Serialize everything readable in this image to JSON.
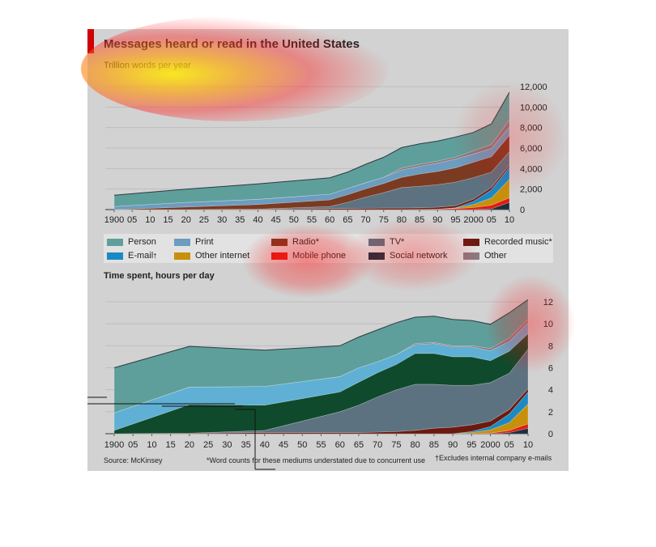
{
  "title": "Messages heard or read in the United States",
  "subtitle_top": "Trillion words per year",
  "subtitle_bottom": "Time spent, hours per day",
  "source": "Source: McKinsey",
  "note_star": "*Word counts for these mediums understated due to concurrent use",
  "note_dagger": "†Excludes internal company e-mails",
  "colors": {
    "Person": "#5e9f9b",
    "Print": "#6c9cc0",
    "Radio": "#7a3b22",
    "TV": "#5d7280",
    "Recorded music": "#6b1a10",
    "E-mail": "#1b8ac4",
    "Other internet": "#c8900a",
    "Mobile phone": "#e21b12",
    "Social network": "#1b2f3f",
    "Other": "#8b7a80",
    "Print_bottom": "#5fb0d4",
    "Radio_bottom": "#0f4a2c"
  },
  "legend": [
    {
      "label": "Person",
      "sup": "",
      "key": "Person"
    },
    {
      "label": "Print",
      "sup": "",
      "key": "Print"
    },
    {
      "label": "Radio*",
      "sup": "",
      "key": "Radio"
    },
    {
      "label": "TV*",
      "sup": "",
      "key": "TV"
    },
    {
      "label": "Recorded music*",
      "sup": "",
      "key": "Recorded music"
    },
    {
      "label": "E-mail",
      "sup": "†",
      "key": "E-mail"
    },
    {
      "label": "Other internet",
      "sup": "",
      "key": "Other internet"
    },
    {
      "label": "Mobile phone",
      "sup": "",
      "key": "Mobile phone"
    },
    {
      "label": "Social network",
      "sup": "",
      "key": "Social network"
    },
    {
      "label": "Other",
      "sup": "",
      "key": "Other"
    }
  ],
  "chart_data": [
    {
      "type": "area",
      "title": "Messages heard or read in the United States",
      "ylabel": "Trillion words per year",
      "xlabel": "",
      "ylim": [
        0,
        12000
      ],
      "yticks": [
        0,
        2000,
        4000,
        6000,
        8000,
        10000,
        12000
      ],
      "ytick_labels": [
        "0",
        "2,000",
        "4,000",
        "6,000",
        "8,000",
        "10,000",
        "12,000"
      ],
      "x": [
        1900,
        1920,
        1940,
        1960,
        1965,
        1970,
        1975,
        1980,
        1985,
        1990,
        1995,
        2000,
        2005,
        2010
      ],
      "xtick_labels": [
        "1900",
        "05",
        "10",
        "15",
        "20",
        "25",
        "30",
        "35",
        "40",
        "45",
        "50",
        "55",
        "60",
        "65",
        "70",
        "75",
        "80",
        "85",
        "90",
        "95",
        "2000",
        "05",
        "10"
      ],
      "grid": true,
      "stacked": true,
      "series": [
        {
          "name": "Social network",
          "values": [
            0,
            0,
            0,
            0,
            0,
            0,
            0,
            0,
            0,
            0,
            0,
            0,
            80,
            700
          ]
        },
        {
          "name": "Mobile phone",
          "values": [
            0,
            0,
            0,
            0,
            0,
            0,
            0,
            0,
            20,
            50,
            100,
            200,
            350,
            450
          ]
        },
        {
          "name": "Other internet",
          "values": [
            0,
            0,
            0,
            0,
            0,
            0,
            0,
            0,
            0,
            0,
            50,
            300,
            700,
            1800
          ]
        },
        {
          "name": "E-mail",
          "values": [
            0,
            0,
            0,
            0,
            0,
            0,
            0,
            0,
            0,
            0,
            30,
            300,
            800,
            1200
          ]
        },
        {
          "name": "Recorded music",
          "values": [
            0,
            0,
            50,
            100,
            110,
            120,
            150,
            150,
            150,
            180,
            200,
            220,
            230,
            200
          ]
        },
        {
          "name": "TV",
          "values": [
            0,
            0,
            0,
            200,
            600,
            1100,
            1500,
            2000,
            2100,
            2200,
            2300,
            2100,
            1500,
            1300
          ]
        },
        {
          "name": "Radio",
          "values": [
            0,
            250,
            450,
            650,
            750,
            800,
            900,
            1000,
            1200,
            1300,
            1400,
            1500,
            1500,
            1600
          ]
        },
        {
          "name": "Print",
          "values": [
            300,
            450,
            500,
            550,
            600,
            600,
            600,
            700,
            750,
            800,
            850,
            800,
            800,
            800
          ]
        },
        {
          "name": "Other",
          "values": [
            0,
            0,
            0,
            0,
            0,
            0,
            0,
            200,
            200,
            200,
            200,
            300,
            400,
            700
          ]
        },
        {
          "name": "Person",
          "values": [
            1100,
            1300,
            1500,
            1600,
            1600,
            1800,
            1950,
            2000,
            2000,
            1950,
            1950,
            1800,
            2000,
            2700
          ]
        }
      ]
    },
    {
      "type": "area",
      "title": "",
      "ylabel": "Time spent, hours per day",
      "xlabel": "",
      "ylim": [
        0,
        12
      ],
      "yticks": [
        0,
        2,
        4,
        6,
        8,
        10,
        12
      ],
      "ytick_labels": [
        "0",
        "2",
        "4",
        "6",
        "8",
        "10",
        "12"
      ],
      "x": [
        1900,
        1920,
        1940,
        1960,
        1965,
        1970,
        1975,
        1980,
        1985,
        1990,
        1995,
        2000,
        2005,
        2010
      ],
      "xtick_labels": [
        "1900",
        "05",
        "10",
        "15",
        "20",
        "25",
        "30",
        "35",
        "40",
        "45",
        "50",
        "55",
        "60",
        "65",
        "70",
        "75",
        "80",
        "85",
        "90",
        "95",
        "2000",
        "05",
        "10"
      ],
      "grid": true,
      "stacked": true,
      "series": [
        {
          "name": "Social network",
          "values": [
            0,
            0,
            0,
            0,
            0,
            0,
            0,
            0,
            0,
            0,
            0,
            0,
            0.1,
            0.5
          ]
        },
        {
          "name": "Mobile phone",
          "values": [
            0,
            0,
            0,
            0,
            0,
            0,
            0,
            0,
            0,
            0,
            0,
            0.05,
            0.2,
            0.4
          ]
        },
        {
          "name": "Other internet",
          "values": [
            0,
            0,
            0,
            0,
            0,
            0,
            0,
            0,
            0,
            0,
            0.1,
            0.3,
            0.7,
            1.8
          ]
        },
        {
          "name": "E-mail",
          "values": [
            0,
            0,
            0,
            0,
            0,
            0,
            0,
            0,
            0,
            0,
            0.1,
            0.3,
            0.8,
            1.1
          ]
        },
        {
          "name": "Recorded music",
          "values": [
            0,
            0.05,
            0.1,
            0.1,
            0.1,
            0.15,
            0.2,
            0.3,
            0.5,
            0.6,
            0.6,
            0.5,
            0.4,
            0.3
          ]
        },
        {
          "name": "TV",
          "values": [
            0,
            0,
            0.2,
            1.9,
            2.5,
            3.2,
            3.8,
            4.2,
            4.0,
            3.8,
            3.6,
            3.5,
            3.3,
            3.6
          ]
        },
        {
          "name": "Radio",
          "values": [
            0.3,
            2.6,
            2.3,
            1.8,
            2.1,
            2.2,
            2.3,
            2.8,
            2.8,
            2.6,
            2.6,
            2.0,
            2.0,
            1.4
          ]
        },
        {
          "name": "Print",
          "values": [
            1.6,
            1.6,
            1.7,
            1.4,
            1.3,
            1.0,
            0.9,
            0.8,
            0.9,
            0.9,
            0.9,
            0.9,
            0.9,
            1.0
          ]
        },
        {
          "name": "Other",
          "values": [
            0,
            0,
            0,
            0,
            0,
            0,
            0,
            0.1,
            0.1,
            0.1,
            0.1,
            0.2,
            0.3,
            0.3
          ]
        },
        {
          "name": "Person",
          "values": [
            4.1,
            3.7,
            3.3,
            2.8,
            2.8,
            2.9,
            2.9,
            2.4,
            2.4,
            2.4,
            2.3,
            2.2,
            2.3,
            1.8
          ]
        }
      ]
    }
  ]
}
